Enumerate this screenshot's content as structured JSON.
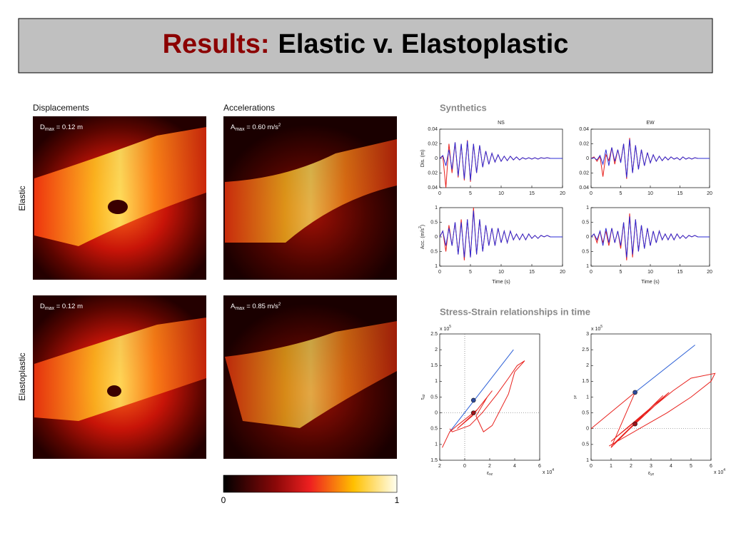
{
  "header": {
    "title_accent": "Results:",
    "title": "Elastic v. Elastoplastic"
  },
  "maps": {
    "columns": [
      "Displacements",
      "Accelerations"
    ],
    "rows": [
      "Elastic",
      "Elastoplastic"
    ],
    "panels": [
      [
        {
          "symbol": "D",
          "sub": "max",
          "text": " = 0.12 m"
        },
        {
          "symbol": "A",
          "sub": "max",
          "text": " = 0.60 m/s",
          "sup": "2"
        }
      ],
      [
        {
          "symbol": "D",
          "sub": "max",
          "text": " = 0.12 m"
        },
        {
          "symbol": "A",
          "sub": "max",
          "text": " = 0.85 m/s",
          "sup": "2"
        }
      ]
    ],
    "colorbar": {
      "ticks": [
        0,
        1
      ]
    }
  },
  "synthetics_title": "Synthetics",
  "stress_title": "Stress-Strain relationships in time",
  "chart_data": [
    {
      "type": "line",
      "title": "NS",
      "ylabel": "Dis. (m)",
      "xlim": [
        0,
        20
      ],
      "ylim": [
        -0.04,
        0.04
      ],
      "xticks": [
        0,
        5,
        10,
        15,
        20
      ],
      "yticks": [
        {
          "value": -0.04,
          "label": "0.04"
        },
        {
          "value": -0.02,
          "label": "0.02"
        },
        0,
        0.02,
        0.04
      ],
      "x": [
        0,
        0.5,
        1,
        1.5,
        2,
        2.5,
        3,
        3.5,
        4,
        4.5,
        5,
        5.5,
        6,
        6.5,
        7,
        7.5,
        8,
        8.5,
        9,
        9.5,
        10,
        10.5,
        11,
        11.5,
        12,
        12.5,
        13,
        13.5,
        14,
        14.5,
        15,
        15.5,
        16,
        16.5,
        17,
        17.5,
        18,
        18.5,
        19,
        19.5,
        20
      ],
      "series": [
        {
          "color": "#e8201c",
          "values": [
            0,
            0.003,
            -0.04,
            0.02,
            -0.02,
            0.022,
            -0.026,
            0.02,
            -0.03,
            0.025,
            -0.032,
            0.02,
            -0.02,
            0.018,
            -0.012,
            0.01,
            -0.008,
            0.007,
            -0.005,
            0.005,
            -0.004,
            0.003,
            -0.003,
            0.003,
            -0.002,
            0.002,
            -0.002,
            0.001,
            -0.001,
            0.001,
            -0.001,
            0.001,
            -0.001,
            0.001,
            0,
            0.001,
            0,
            0,
            0,
            0,
            0
          ]
        },
        {
          "color": "#2b2bd6",
          "values": [
            0,
            0.004,
            -0.01,
            0.012,
            -0.015,
            0.022,
            -0.024,
            0.02,
            -0.028,
            0.024,
            -0.03,
            0.02,
            -0.02,
            0.018,
            -0.012,
            0.01,
            -0.008,
            0.007,
            -0.005,
            0.005,
            -0.004,
            0.003,
            -0.003,
            0.003,
            -0.002,
            0.002,
            -0.002,
            0.001,
            -0.001,
            0.001,
            -0.001,
            0.001,
            -0.001,
            0.001,
            0,
            0.001,
            0,
            0,
            0,
            0,
            0
          ]
        }
      ]
    },
    {
      "type": "line",
      "title": "EW",
      "xlim": [
        0,
        20
      ],
      "ylim": [
        -0.04,
        0.04
      ],
      "xticks": [
        0,
        5,
        10,
        15,
        20
      ],
      "yticks": [
        {
          "value": -0.04,
          "label": "0.04"
        },
        {
          "value": -0.02,
          "label": "0.02"
        },
        0,
        0.02,
        0.04
      ],
      "x": [
        0,
        0.5,
        1,
        1.5,
        2,
        2.5,
        3,
        3.5,
        4,
        4.5,
        5,
        5.5,
        6,
        6.5,
        7,
        7.5,
        8,
        8.5,
        9,
        9.5,
        10,
        10.5,
        11,
        11.5,
        12,
        12.5,
        13,
        13.5,
        14,
        14.5,
        15,
        15.5,
        16,
        16.5,
        17,
        17.5,
        18,
        18.5,
        19,
        19.5,
        20
      ],
      "series": [
        {
          "color": "#e8201c",
          "values": [
            0,
            0.002,
            -0.004,
            0.003,
            -0.025,
            0.005,
            -0.003,
            0.015,
            -0.008,
            0.012,
            -0.005,
            0.02,
            -0.028,
            0.028,
            -0.02,
            0.018,
            -0.015,
            0.012,
            -0.01,
            0.008,
            -0.006,
            0.005,
            -0.004,
            0.003,
            -0.003,
            0.002,
            -0.002,
            0.002,
            -0.001,
            0.001,
            -0.002,
            0.002,
            -0.001,
            0.001,
            -0.001,
            0.001,
            0,
            0,
            0,
            0,
            0
          ]
        },
        {
          "color": "#2b2bd6",
          "values": [
            0,
            0.001,
            -0.002,
            0.004,
            -0.008,
            0.012,
            -0.01,
            0.015,
            -0.004,
            0.012,
            -0.006,
            0.02,
            -0.026,
            0.026,
            -0.02,
            0.018,
            -0.015,
            0.012,
            -0.01,
            0.008,
            -0.006,
            0.005,
            -0.004,
            0.003,
            -0.003,
            0.002,
            -0.002,
            0.002,
            -0.001,
            0.001,
            -0.002,
            0.002,
            -0.001,
            0.001,
            -0.001,
            0.001,
            0,
            0,
            0,
            0,
            0
          ]
        }
      ]
    },
    {
      "type": "line",
      "ylabel": "Acc. (m/s",
      "ylabel_sup": "2",
      "ylabel_end": ")",
      "xlabel": "Time (s)",
      "xlim": [
        0,
        20
      ],
      "ylim": [
        -1,
        1
      ],
      "xticks": [
        0,
        5,
        10,
        15,
        20
      ],
      "yticks": [
        {
          "value": -1,
          "label": "1"
        },
        {
          "value": -0.5,
          "label": "0.5"
        },
        0,
        0.5,
        1
      ],
      "x": [
        0,
        0.5,
        1,
        1.5,
        2,
        2.5,
        3,
        3.5,
        4,
        4.5,
        5,
        5.5,
        6,
        6.5,
        7,
        7.5,
        8,
        8.5,
        9,
        9.5,
        10,
        10.5,
        11,
        11.5,
        12,
        12.5,
        13,
        13.5,
        14,
        14.5,
        15,
        15.5,
        16,
        16.5,
        17,
        17.5,
        18,
        18.5,
        19,
        19.5,
        20
      ],
      "series": [
        {
          "color": "#e8201c",
          "values": [
            0,
            0.2,
            -0.5,
            0.4,
            -0.3,
            0.5,
            -0.6,
            0.6,
            -0.8,
            0.6,
            -0.7,
            1.0,
            -0.6,
            0.6,
            -0.5,
            0.4,
            -0.3,
            0.3,
            -0.3,
            0.3,
            -0.2,
            0.2,
            -0.2,
            0.2,
            -0.1,
            0.1,
            -0.1,
            0.1,
            -0.1,
            0.1,
            -0.05,
            0.05,
            -0.05,
            0.05,
            0,
            0.05,
            0,
            0,
            0,
            0,
            0
          ]
        },
        {
          "color": "#2b2bd6",
          "values": [
            0,
            0.2,
            -0.3,
            0.3,
            -0.3,
            0.5,
            -0.6,
            0.5,
            -0.7,
            0.6,
            -0.7,
            0.9,
            -0.6,
            0.6,
            -0.5,
            0.4,
            -0.3,
            0.3,
            -0.3,
            0.3,
            -0.2,
            0.2,
            -0.2,
            0.2,
            -0.1,
            0.1,
            -0.1,
            0.1,
            -0.1,
            0.1,
            -0.05,
            0.05,
            -0.05,
            0.05,
            0,
            0.05,
            0,
            0,
            0,
            0,
            0
          ]
        }
      ]
    },
    {
      "type": "line",
      "xlabel": "Time (s)",
      "xlim": [
        0,
        20
      ],
      "ylim": [
        -1,
        1
      ],
      "xticks": [
        0,
        5,
        10,
        15,
        20
      ],
      "yticks": [
        {
          "value": -1,
          "label": "1"
        },
        {
          "value": -0.5,
          "label": "0.5"
        },
        0,
        0.5,
        1
      ],
      "x": [
        0,
        0.5,
        1,
        1.5,
        2,
        2.5,
        3,
        3.5,
        4,
        4.5,
        5,
        5.5,
        6,
        6.5,
        7,
        7.5,
        8,
        8.5,
        9,
        9.5,
        10,
        10.5,
        11,
        11.5,
        12,
        12.5,
        13,
        13.5,
        14,
        14.5,
        15,
        15.5,
        16,
        16.5,
        17,
        17.5,
        18,
        18.5,
        19,
        19.5,
        20
      ],
      "series": [
        {
          "color": "#e8201c",
          "values": [
            0,
            0.1,
            -0.2,
            0.2,
            -0.2,
            0.2,
            -0.3,
            0.3,
            -0.2,
            0.2,
            -0.4,
            0.5,
            -0.8,
            0.8,
            -0.7,
            0.6,
            -0.5,
            0.4,
            -0.4,
            0.3,
            -0.3,
            0.2,
            -0.2,
            0.2,
            -0.1,
            0.1,
            -0.1,
            0.1,
            -0.1,
            0.1,
            -0.05,
            0.05,
            -0.05,
            0.05,
            0,
            0.05,
            0,
            0,
            0,
            0,
            0
          ]
        },
        {
          "color": "#2b2bd6",
          "values": [
            0,
            0.1,
            -0.1,
            0.2,
            -0.3,
            0.3,
            -0.2,
            0.3,
            -0.2,
            0.2,
            -0.3,
            0.5,
            -0.7,
            0.7,
            -0.6,
            0.6,
            -0.5,
            0.4,
            -0.4,
            0.3,
            -0.3,
            0.2,
            -0.2,
            0.2,
            -0.1,
            0.1,
            -0.1,
            0.1,
            -0.1,
            0.1,
            -0.05,
            0.05,
            -0.05,
            0.05,
            0,
            0.05,
            0,
            0,
            0,
            0,
            0
          ]
        }
      ]
    },
    {
      "type": "line",
      "ylabel": "τ",
      "ylabel_sub": "xz",
      "xlabel": "ε",
      "xlabel_sub": "xz",
      "y_exponent": {
        "base": "x 10",
        "exp": "5"
      },
      "x_exponent": {
        "base": "x 10",
        "exp": "4"
      },
      "xlim": [
        -2,
        6
      ],
      "ylim": [
        -1.5,
        2.5
      ],
      "xticks": [
        {
          "value": -2,
          "label": "2"
        },
        0,
        2,
        4,
        6
      ],
      "yticks": [
        {
          "value": -1.5,
          "label": "1.5"
        },
        {
          "value": -1,
          "label": "1"
        },
        {
          "value": -0.5,
          "label": "0.5"
        },
        0,
        0.5,
        1,
        1.5,
        2,
        2.5
      ],
      "series": [
        {
          "color": "#2b5fd6",
          "x": [
            -1.2,
            3.9
          ],
          "values": [
            -0.6,
            2.0
          ]
        },
        {
          "color": "#e8201c",
          "x": [
            -1.8,
            -1.2,
            -0.6,
            1.0,
            2.2,
            0.8,
            -0.6,
            0.6,
            1.8,
            0.9,
            1.5,
            2.2,
            3.5,
            4.0,
            4.8,
            4.2,
            3.5,
            2.6,
            1.4,
            0.4,
            -1.0,
            -1.2
          ],
          "values": [
            -1.1,
            -0.6,
            -0.4,
            0.1,
            0.7,
            0.0,
            -0.5,
            -0.1,
            0.5,
            -0.1,
            -0.6,
            -0.4,
            0.6,
            1.3,
            1.65,
            1.5,
            1.1,
            0.6,
            0.0,
            -0.4,
            -0.6,
            -0.5
          ]
        },
        {
          "color": "#2e4a9e",
          "marker": true,
          "x": [
            0.7
          ],
          "values": [
            0.4
          ]
        },
        {
          "color": "#a0141a",
          "marker": true,
          "x": [
            0.7
          ],
          "values": [
            0.0
          ]
        }
      ]
    },
    {
      "type": "line",
      "ylabel_sub": "yz",
      "xlabel": "ε",
      "xlabel_sub": "yz",
      "y_exponent": {
        "base": "x 10",
        "exp": "5"
      },
      "x_exponent": {
        "base": "x 10",
        "exp": "4"
      },
      "xlim": [
        0,
        6
      ],
      "ylim": [
        -1,
        3
      ],
      "xticks": [
        0,
        1,
        2,
        3,
        4,
        5,
        6
      ],
      "yticks": [
        {
          "value": -1,
          "label": "1"
        },
        {
          "value": -0.5,
          "label": "0.5"
        },
        0,
        0.5,
        1,
        1.5,
        2,
        2.5,
        3
      ],
      "series": [
        {
          "color": "#2b5fd6",
          "x": [
            2.2,
            5.2
          ],
          "values": [
            1.15,
            2.65
          ]
        },
        {
          "color": "#e8201c",
          "x": [
            0,
            2.2,
            1.0,
            3.6,
            1.1,
            3.9,
            1.0,
            4.1,
            5.0,
            6.2,
            6.0,
            5.0,
            3.8,
            0.9
          ],
          "values": [
            0,
            1.15,
            -0.6,
            1.05,
            -0.5,
            1.15,
            -0.4,
            1.2,
            1.6,
            1.75,
            1.5,
            1.0,
            0.5,
            -0.55
          ]
        },
        {
          "color": "#2e4a9e",
          "marker": true,
          "x": [
            2.2
          ],
          "values": [
            1.15
          ]
        },
        {
          "color": "#a0141a",
          "marker": true,
          "x": [
            2.2
          ],
          "values": [
            0.15
          ]
        }
      ]
    }
  ]
}
